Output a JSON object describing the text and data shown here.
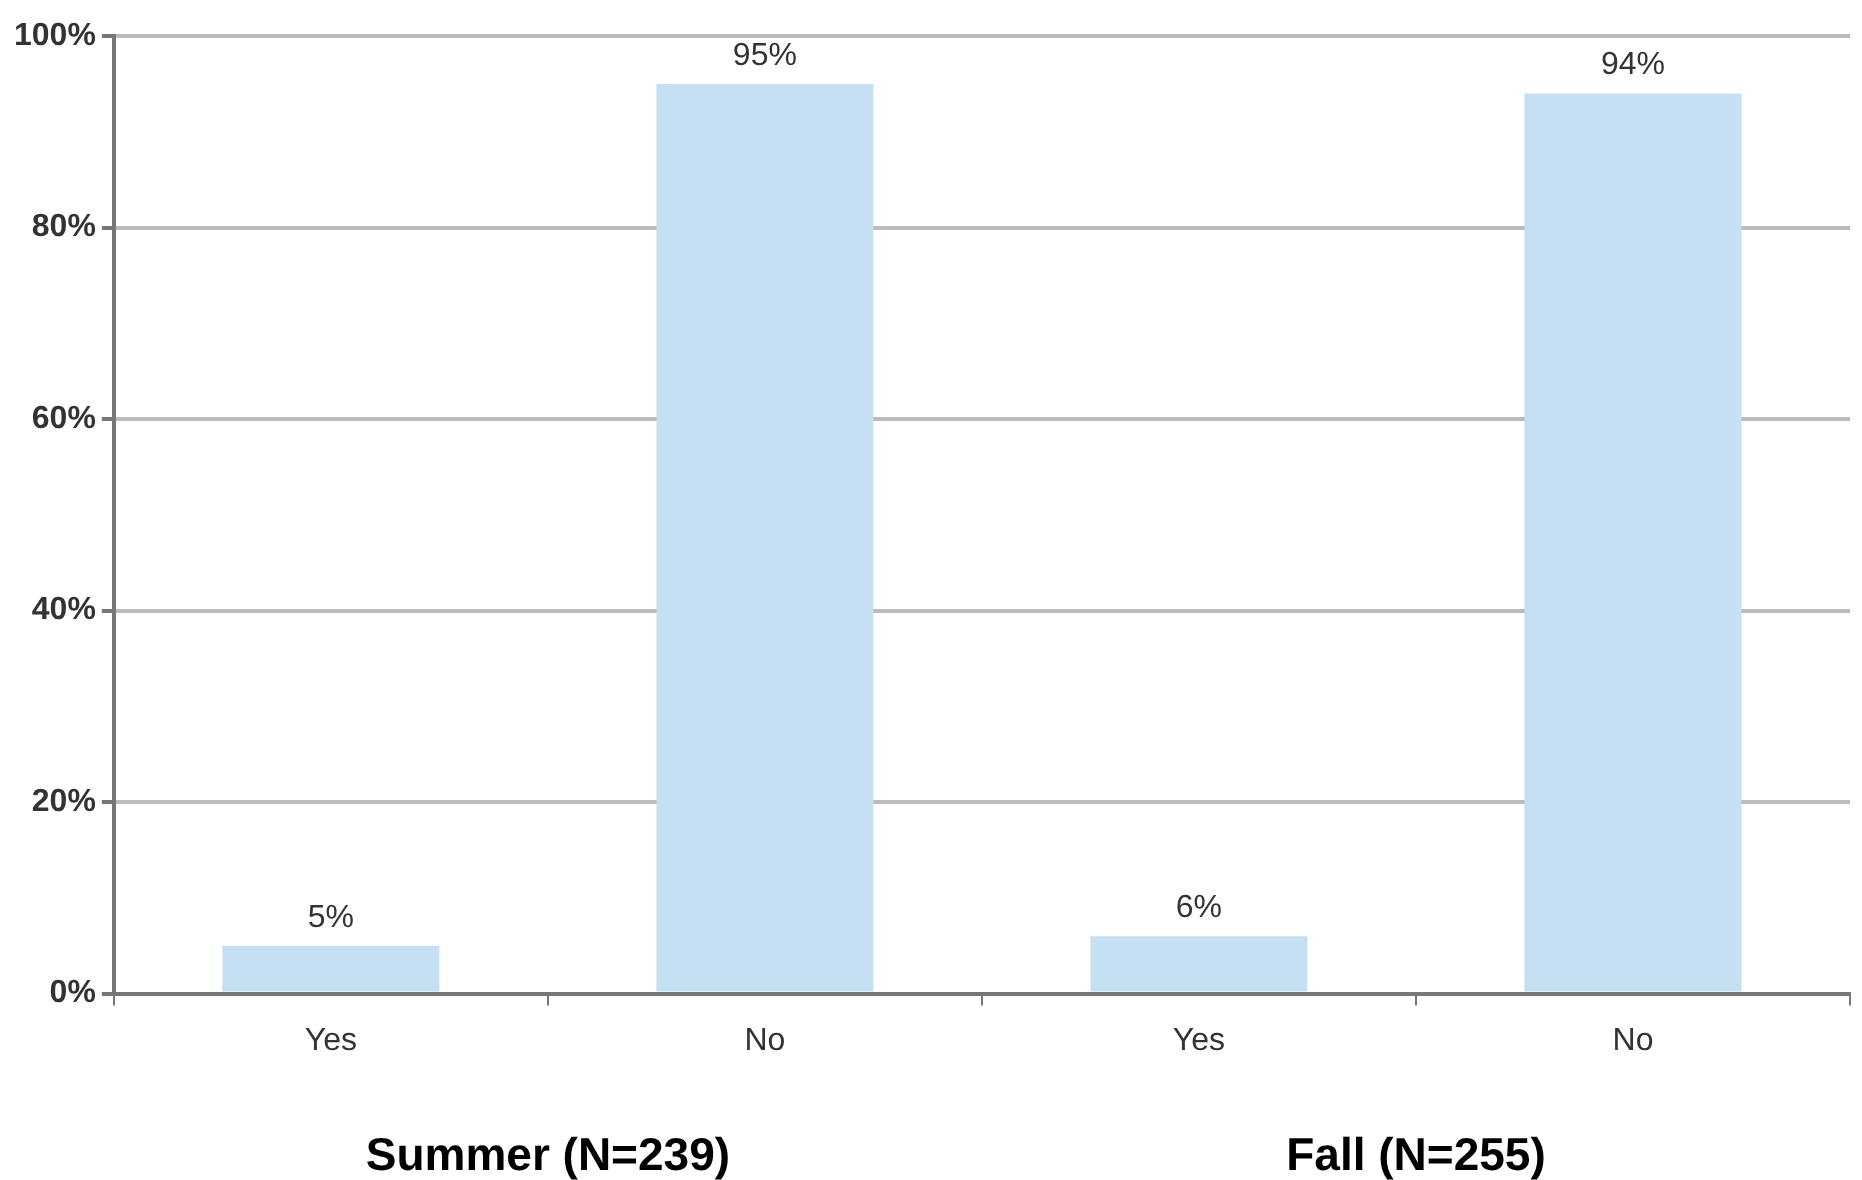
{
  "chart_data": {
    "type": "bar",
    "categories": [
      "Yes",
      "No",
      "Yes",
      "No"
    ],
    "values": [
      5,
      95,
      6,
      94
    ],
    "value_labels": [
      "5%",
      "95%",
      "6%",
      "94%"
    ],
    "color": "#c5dff3",
    "ylim": [
      0,
      100
    ],
    "yticks": [
      {
        "value": 0,
        "label": "0%"
      },
      {
        "value": 20,
        "label": "20%"
      },
      {
        "value": 40,
        "label": "40%"
      },
      {
        "value": 60,
        "label": "60%"
      },
      {
        "value": 80,
        "label": "80%"
      },
      {
        "value": 100,
        "label": "100%"
      }
    ],
    "grid": "y",
    "annotations": [
      "Summer (N=239)",
      "Fall (N=255)"
    ]
  }
}
